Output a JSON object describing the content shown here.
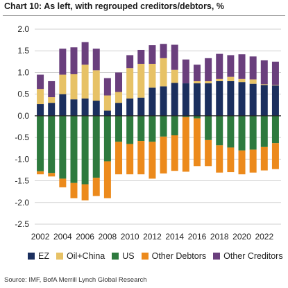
{
  "title": "Chart 10: As left, with regrouped creditors/debtors, %",
  "source": "Source: IMF, BofA Merrill Lynch Global Research",
  "chart_data": {
    "type": "bar",
    "stacked": true,
    "years": [
      2002,
      2003,
      2004,
      2005,
      2006,
      2007,
      2008,
      2009,
      2010,
      2011,
      2012,
      2013,
      2014,
      2015,
      2016,
      2017,
      2018,
      2019,
      2020,
      2021,
      2022,
      2023
    ],
    "x_tick_labels": [
      "2002",
      "2004",
      "2006",
      "2008",
      "2010",
      "2012",
      "2014",
      "2016",
      "2018",
      "2020",
      "2022"
    ],
    "ylim": [
      -2.5,
      2.0
    ],
    "y_ticks": [
      "2.0",
      "1.5",
      "1.0",
      "0.5",
      "0.0",
      "-0.5",
      "-1.0",
      "-1.5",
      "-2.0",
      "-2.5"
    ],
    "y_tick_values": [
      2.0,
      1.5,
      1.0,
      0.5,
      0.0,
      -0.5,
      -1.0,
      -1.5,
      -2.0,
      -2.5
    ],
    "grid": true,
    "legend_position": "bottom",
    "series": [
      {
        "name": "EZ",
        "color": "#1b2f5e",
        "values": [
          0.27,
          0.3,
          0.5,
          0.38,
          0.4,
          0.35,
          0.12,
          0.3,
          0.4,
          0.42,
          0.65,
          0.68,
          0.76,
          0.75,
          0.75,
          0.75,
          0.8,
          0.8,
          0.78,
          0.74,
          0.71,
          0.7
        ]
      },
      {
        "name": "Oil+China",
        "color": "#e7c266",
        "values": [
          0.35,
          0.13,
          0.45,
          0.58,
          0.78,
          0.7,
          0.35,
          0.25,
          0.7,
          0.78,
          0.55,
          0.65,
          0.3,
          0.0,
          0.05,
          0.05,
          0.05,
          0.1,
          0.07,
          0.1,
          0.02,
          0.01
        ]
      },
      {
        "name": "US",
        "color": "#2e7a3e",
        "values": [
          -1.28,
          -1.32,
          -1.45,
          -1.55,
          -1.58,
          -1.43,
          -1.05,
          -0.6,
          -0.65,
          -0.58,
          -0.6,
          -0.48,
          -0.45,
          -0.03,
          -0.06,
          -0.56,
          -0.68,
          -0.73,
          -0.8,
          -0.78,
          -0.72,
          -0.63
        ]
      },
      {
        "name": "Other Debtors",
        "color": "#ec8a1c",
        "values": [
          -0.07,
          -0.08,
          -0.2,
          -0.35,
          -0.37,
          -0.42,
          -0.85,
          -0.75,
          -0.7,
          -0.77,
          -0.85,
          -0.85,
          -0.82,
          -1.26,
          -1.1,
          -0.6,
          -0.63,
          -0.57,
          -0.55,
          -0.53,
          -0.54,
          -0.6
        ]
      },
      {
        "name": "Other Creditors",
        "color": "#6a3f7d",
        "values": [
          0.33,
          0.37,
          0.6,
          0.62,
          0.52,
          0.5,
          0.4,
          0.45,
          0.3,
          0.32,
          0.43,
          0.33,
          0.58,
          0.55,
          0.38,
          0.53,
          0.58,
          0.5,
          0.57,
          0.53,
          0.55,
          0.54
        ]
      }
    ]
  }
}
